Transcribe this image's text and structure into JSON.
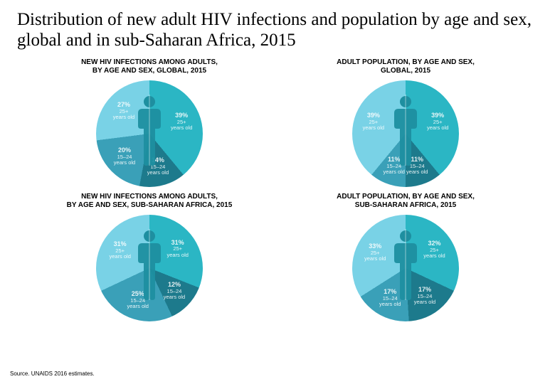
{
  "title": "Distribution of new adult HIV infections and population by age and sex, global and in sub-Saharan Africa, 2015",
  "source": "Source. UNAIDS 2016 estimates.",
  "colors": {
    "f_old": "#79d2e6",
    "f_young": "#3aa0b8",
    "m_young": "#1d7a8c",
    "m_old": "#2bb6c4",
    "person": "#1e8fa0",
    "bg": "#ffffff"
  },
  "charts": [
    {
      "subtitle": "NEW HIV INFECTIONS AMONG ADULTS,\nBY AGE AND SEX, GLOBAL, 2015",
      "segments": [
        {
          "key": "f_old",
          "pct": 27,
          "txt": "25+\nyears old"
        },
        {
          "key": "f_young",
          "pct": 20,
          "txt": "15–24\nyears old"
        },
        {
          "key": "m_young",
          "pct": 14,
          "txt": "15–24\nyears old"
        },
        {
          "key": "m_old",
          "pct": 39,
          "txt": "25+\nyears old"
        }
      ]
    },
    {
      "subtitle": "ADULT POPULATION, BY AGE AND SEX,\nGLOBAL, 2015",
      "segments": [
        {
          "key": "f_old",
          "pct": 39,
          "txt": "25+\nyears old"
        },
        {
          "key": "f_young",
          "pct": 11,
          "txt": "15–24\nyears old"
        },
        {
          "key": "m_young",
          "pct": 11,
          "txt": "15–24\nyears old"
        },
        {
          "key": "m_old",
          "pct": 39,
          "txt": "25+\nyears old"
        }
      ]
    },
    {
      "subtitle": "NEW HIV INFECTIONS AMONG ADULTS,\nBY AGE AND SEX, SUB-SAHARAN AFRICA, 2015",
      "segments": [
        {
          "key": "f_old",
          "pct": 31,
          "txt": "25+\nyears old"
        },
        {
          "key": "f_young",
          "pct": 25,
          "txt": "15–24\nyears old"
        },
        {
          "key": "m_young",
          "pct": 12,
          "txt": "15–24\nyears old"
        },
        {
          "key": "m_old",
          "pct": 31,
          "txt": "25+\nyears old"
        }
      ]
    },
    {
      "subtitle": "ADULT POPULATION, BY AGE AND SEX,\nSUB-SAHARAN AFRICA, 2015",
      "segments": [
        {
          "key": "f_old",
          "pct": 33,
          "txt": "25+\nyears old"
        },
        {
          "key": "f_young",
          "pct": 17,
          "txt": "15–24\nyears old"
        },
        {
          "key": "m_young",
          "pct": 17,
          "txt": "15–24\nyears old"
        },
        {
          "key": "m_old",
          "pct": 32,
          "txt": "25+\nyears old"
        }
      ]
    }
  ]
}
